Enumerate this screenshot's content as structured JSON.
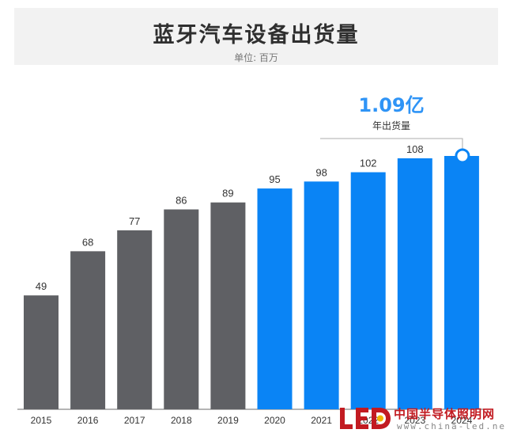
{
  "header": {
    "title": "蓝牙汽车设备出货量",
    "subtitle": "单位: 百万"
  },
  "callout": {
    "value": "1.09亿",
    "label": "年出货量"
  },
  "colors": {
    "historical": "#5f6064",
    "forecast": "#0a84f5",
    "axis": "#6b6b6b",
    "callout_line": "#bdbdbd",
    "callout_value": "#2f94f6",
    "watermark_red": "#c21b21"
  },
  "watermark": {
    "brand_cn": "中国半导体照明网",
    "url": "www.china-led.net",
    "logo_text": "LED"
  },
  "chart_data": {
    "type": "bar",
    "title": "蓝牙汽车设备出货量",
    "subtitle": "单位: 百万",
    "categories": [
      "2015",
      "2016",
      "2017",
      "2018",
      "2019",
      "2020",
      "2021",
      "2022",
      "2023",
      "2024"
    ],
    "values": [
      49,
      68,
      77,
      86,
      89,
      95,
      98,
      102,
      108,
      109
    ],
    "data_labels": [
      "49",
      "68",
      "77",
      "86",
      "89",
      "95",
      "98",
      "102",
      "108",
      ""
    ],
    "bar_groups": [
      "historical",
      "historical",
      "historical",
      "historical",
      "historical",
      "forecast",
      "forecast",
      "forecast",
      "forecast",
      "forecast"
    ],
    "ylim": [
      0,
      109
    ],
    "grid": false,
    "annotation": {
      "category": "2024",
      "value": "1.09亿",
      "label": "年出货量"
    }
  }
}
